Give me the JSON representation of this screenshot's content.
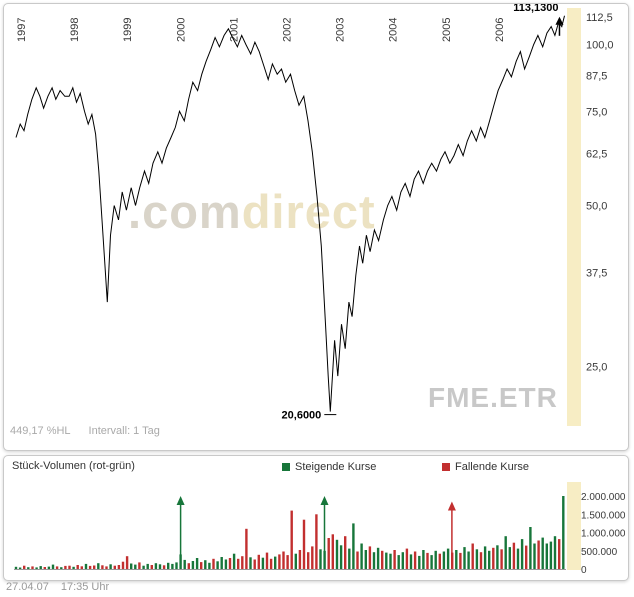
{
  "price_panel": {
    "watermark_dot": ".",
    "watermark_com": "com",
    "watermark_direct": "direct",
    "symbol_watermark": "FME.ETR",
    "pct_hl": "449,17 %HL",
    "interval_label": "Intervall: 1 Tag",
    "high_label": "113,1300",
    "low_label": "20,6000",
    "band_color": "#f7edc4",
    "line_color": "#000000"
  },
  "volume_panel": {
    "title": "Stück-Volumen (rot-grün)",
    "legend": {
      "up_label": "Steigende Kurse",
      "down_label": "Fallende Kurse"
    },
    "up_color": "#17763a",
    "down_color": "#c22f2f"
  },
  "status_bar": {
    "date": "27.04.07",
    "time": "17:35 Uhr"
  },
  "chart_data": [
    {
      "type": "line",
      "title": "FME.ETR Kursverlauf 1997-2007",
      "x_range": [
        1997.0,
        2007.34
      ],
      "x_ticks": [
        1997,
        1998,
        1999,
        2000,
        2001,
        2002,
        2003,
        2004,
        2005,
        2006
      ],
      "y_scale": "log",
      "y_ticks": [
        112.5,
        100.0,
        87.5,
        75.0,
        62.5,
        50.0,
        37.5,
        25.0
      ],
      "y_tick_labels": [
        "112,5",
        "100,0",
        "87,5",
        "75,0",
        "62,5",
        "50,0",
        "37,5",
        "25,0"
      ],
      "annotations": {
        "last": {
          "x": 2007.33,
          "value": 113.13,
          "label": "113,1300"
        },
        "low": {
          "x": 2002.92,
          "value": 20.6,
          "label": "20,6000"
        }
      },
      "series": [
        {
          "name": "FME.ETR",
          "points": [
            [
              1997.0,
              67
            ],
            [
              1997.08,
              71
            ],
            [
              1997.15,
              69
            ],
            [
              1997.22,
              74
            ],
            [
              1997.3,
              79
            ],
            [
              1997.38,
              83
            ],
            [
              1997.45,
              80
            ],
            [
              1997.52,
              76
            ],
            [
              1997.6,
              80
            ],
            [
              1997.68,
              83
            ],
            [
              1997.75,
              79
            ],
            [
              1997.83,
              82
            ],
            [
              1997.92,
              80
            ],
            [
              1998.0,
              80
            ],
            [
              1998.07,
              83
            ],
            [
              1998.14,
              78
            ],
            [
              1998.21,
              81
            ],
            [
              1998.29,
              75
            ],
            [
              1998.36,
              71
            ],
            [
              1998.43,
              74
            ],
            [
              1998.5,
              68
            ],
            [
              1998.56,
              58
            ],
            [
              1998.62,
              47
            ],
            [
              1998.68,
              38
            ],
            [
              1998.72,
              33
            ],
            [
              1998.78,
              44
            ],
            [
              1998.85,
              50
            ],
            [
              1998.93,
              47
            ],
            [
              1999.0,
              53
            ],
            [
              1999.08,
              49
            ],
            [
              1999.17,
              54
            ],
            [
              1999.25,
              50
            ],
            [
              1999.33,
              54
            ],
            [
              1999.42,
              58
            ],
            [
              1999.5,
              55
            ],
            [
              1999.58,
              60
            ],
            [
              1999.67,
              63
            ],
            [
              1999.75,
              60
            ],
            [
              1999.83,
              64
            ],
            [
              1999.92,
              67
            ],
            [
              2000.0,
              70
            ],
            [
              2000.08,
              75
            ],
            [
              2000.17,
              72
            ],
            [
              2000.25,
              79
            ],
            [
              2000.33,
              85
            ],
            [
              2000.42,
              82
            ],
            [
              2000.5,
              88
            ],
            [
              2000.58,
              93
            ],
            [
              2000.67,
              98
            ],
            [
              2000.75,
              103
            ],
            [
              2000.83,
              99
            ],
            [
              2000.92,
              104
            ],
            [
              2001.0,
              107
            ],
            [
              2001.08,
              103
            ],
            [
              2001.17,
              99
            ],
            [
              2001.25,
              104
            ],
            [
              2001.33,
              100
            ],
            [
              2001.42,
              96
            ],
            [
              2001.5,
              101
            ],
            [
              2001.58,
              97
            ],
            [
              2001.67,
              91
            ],
            [
              2001.75,
              86
            ],
            [
              2001.83,
              92
            ],
            [
              2001.92,
              88
            ],
            [
              2002.0,
              90
            ],
            [
              2002.08,
              85
            ],
            [
              2002.17,
              88
            ],
            [
              2002.25,
              82
            ],
            [
              2002.33,
              77
            ],
            [
              2002.42,
              80
            ],
            [
              2002.5,
              72
            ],
            [
              2002.58,
              63
            ],
            [
              2002.67,
              52
            ],
            [
              2002.75,
              42
            ],
            [
              2002.83,
              30
            ],
            [
              2002.88,
              24
            ],
            [
              2002.92,
              20.6
            ],
            [
              2003.0,
              28
            ],
            [
              2003.06,
              24
            ],
            [
              2003.13,
              30
            ],
            [
              2003.2,
              27
            ],
            [
              2003.27,
              33
            ],
            [
              2003.33,
              31
            ],
            [
              2003.4,
              37
            ],
            [
              2003.47,
              42
            ],
            [
              2003.53,
              39
            ],
            [
              2003.6,
              44
            ],
            [
              2003.67,
              41
            ],
            [
              2003.75,
              45
            ],
            [
              2003.83,
              43
            ],
            [
              2003.92,
              47
            ],
            [
              2004.0,
              50
            ],
            [
              2004.08,
              52
            ],
            [
              2004.17,
              49
            ],
            [
              2004.25,
              53
            ],
            [
              2004.33,
              55
            ],
            [
              2004.42,
              52
            ],
            [
              2004.5,
              56
            ],
            [
              2004.58,
              58
            ],
            [
              2004.67,
              55
            ],
            [
              2004.75,
              58
            ],
            [
              2004.83,
              60
            ],
            [
              2004.92,
              58
            ],
            [
              2005.0,
              61
            ],
            [
              2005.08,
              63
            ],
            [
              2005.17,
              60
            ],
            [
              2005.25,
              62
            ],
            [
              2005.33,
              65
            ],
            [
              2005.42,
              62
            ],
            [
              2005.5,
              66
            ],
            [
              2005.58,
              69
            ],
            [
              2005.67,
              66
            ],
            [
              2005.75,
              70
            ],
            [
              2005.83,
              67
            ],
            [
              2005.92,
              72
            ],
            [
              2006.0,
              77
            ],
            [
              2006.08,
              82
            ],
            [
              2006.17,
              86
            ],
            [
              2006.25,
              90
            ],
            [
              2006.33,
              87
            ],
            [
              2006.42,
              93
            ],
            [
              2006.5,
              97
            ],
            [
              2006.58,
              90
            ],
            [
              2006.67,
              95
            ],
            [
              2006.75,
              100
            ],
            [
              2006.83,
              104
            ],
            [
              2006.92,
              99
            ],
            [
              2007.0,
              105
            ],
            [
              2007.08,
              108
            ],
            [
              2007.15,
              104
            ],
            [
              2007.22,
              110
            ],
            [
              2007.28,
              108
            ],
            [
              2007.33,
              113.13
            ]
          ]
        }
      ]
    },
    {
      "type": "bar",
      "title": "Stück-Volumen (rot-grün)",
      "x_start": 1997.0,
      "x_step": 0.0775,
      "y_ticks": [
        2000000,
        1500000,
        1000000,
        500000,
        0
      ],
      "y_tick_labels": [
        "2.000.000",
        "1.500.000",
        "1.000.000",
        "500.000",
        "0"
      ],
      "values": [
        60000,
        40000,
        90000,
        50000,
        70000,
        45000,
        80000,
        55000,
        65000,
        120000,
        70000,
        50000,
        85000,
        90000,
        60000,
        110000,
        75000,
        140000,
        85000,
        95000,
        160000,
        100000,
        70000,
        130000,
        90000,
        110000,
        200000,
        350000,
        150000,
        120000,
        180000,
        90000,
        140000,
        110000,
        160000,
        130000,
        100000,
        170000,
        140000,
        180000,
        400000,
        250000,
        160000,
        220000,
        300000,
        190000,
        240000,
        170000,
        280000,
        210000,
        330000,
        260000,
        300000,
        420000,
        280000,
        350000,
        1100000,
        320000,
        260000,
        390000,
        310000,
        450000,
        280000,
        340000,
        400000,
        480000,
        380000,
        1600000,
        420000,
        520000,
        1350000,
        460000,
        620000,
        1500000,
        540000,
        500000,
        850000,
        950000,
        800000,
        650000,
        900000,
        560000,
        1250000,
        480000,
        700000,
        520000,
        620000,
        460000,
        580000,
        500000,
        450000,
        420000,
        520000,
        380000,
        460000,
        560000,
        400000,
        480000,
        360000,
        520000,
        440000,
        380000,
        500000,
        420000,
        480000,
        560000,
        450000,
        520000,
        440000,
        600000,
        480000,
        700000,
        540000,
        460000,
        620000,
        500000,
        580000,
        650000,
        540000,
        900000,
        600000,
        720000,
        560000,
        820000,
        640000,
        1150000,
        700000,
        780000,
        860000,
        700000,
        750000,
        900000,
        820000,
        2000000
      ],
      "directions": "ggrgrggrggrgrrgrrgrrgrrgrrrrggrggrggrgggggrggrggrgggrgrrrgrrgrrgrrrrgrrrrrggrrggrggrggrggrggrggrgrggrggrggrgrggrgrggrgrggrggrggrggggrg",
      "arrows": [
        {
          "x": 2000.1,
          "dir": "up",
          "volume": 2000000
        },
        {
          "x": 2002.81,
          "dir": "up",
          "volume": 2000000
        },
        {
          "x": 2005.21,
          "dir": "down",
          "volume": 1850000
        }
      ]
    }
  ]
}
